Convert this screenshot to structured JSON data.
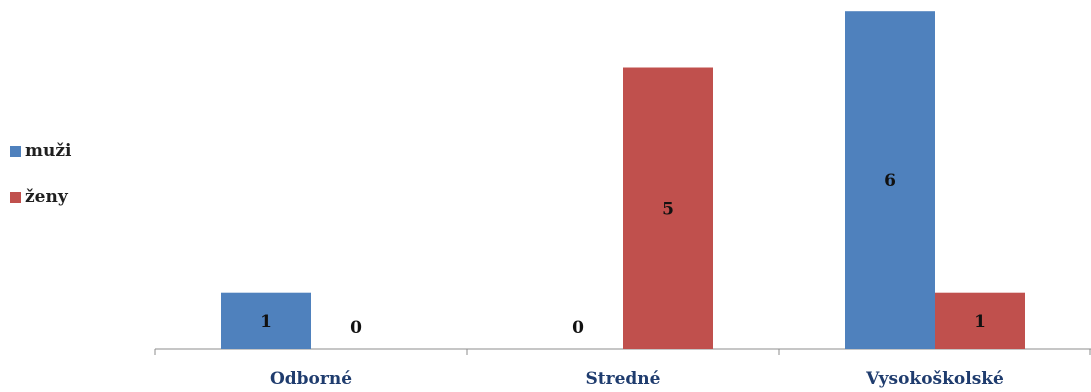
{
  "chart_data": {
    "type": "bar",
    "categories": [
      "Odborné",
      "Stredné",
      "Vysokoškolské"
    ],
    "series": [
      {
        "name": "muži",
        "values": [
          1,
          0,
          6
        ],
        "color": "#4F81BD"
      },
      {
        "name": "ženy",
        "values": [
          0,
          5,
          1
        ],
        "color": "#C0504D"
      }
    ],
    "ylim": [
      0,
      6
    ],
    "grid": false,
    "legend_position": "left",
    "data_labels": true
  }
}
